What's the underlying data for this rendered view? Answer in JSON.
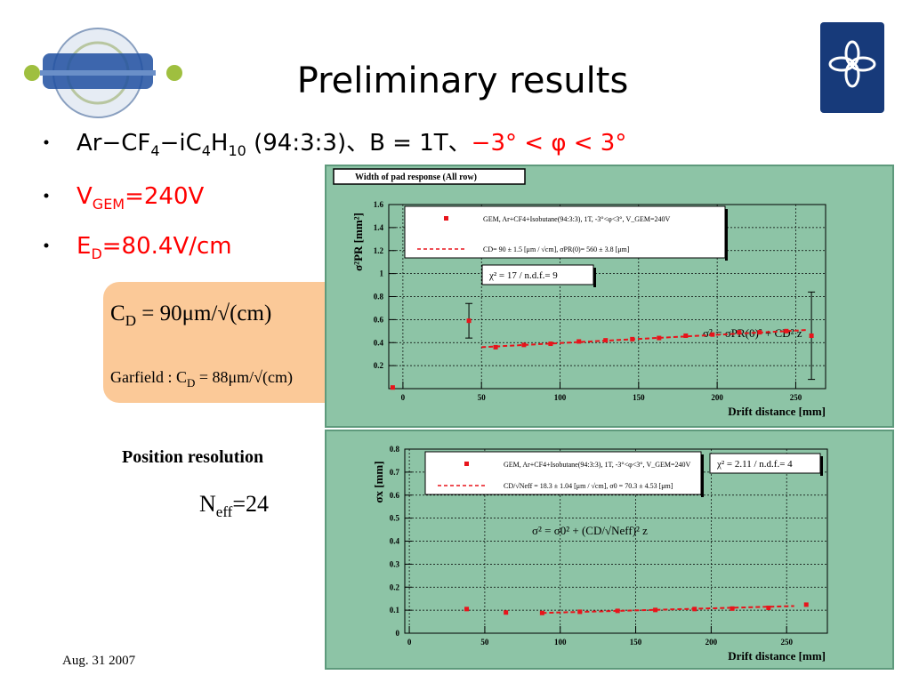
{
  "header": {
    "title": "Preliminary results"
  },
  "bullets": [
    [
      "Ar−CF",
      "4",
      "−iC",
      "4",
      "H",
      "10",
      " (94:3:3)、B = 1T、",
      "−3° < φ < 3°"
    ],
    [
      "V",
      "GEM",
      "=240V"
    ],
    [
      "E",
      "D",
      "=80.4V/cm"
    ]
  ],
  "box": {
    "line1": [
      "C",
      "D",
      " = 90μm/√(cm)"
    ],
    "line2": [
      "Garfield : C",
      "D",
      " = 88μm/√(cm)"
    ]
  },
  "resolution": {
    "label": "Position resolution",
    "neff": [
      "N",
      "eff",
      "=24"
    ]
  },
  "footer": {
    "date": "Aug. 31 2007"
  },
  "chart_data": [
    {
      "type": "scatter",
      "title": "Width of pad response (All row)",
      "x_label": "Drift distance [mm]",
      "y_label": "σ²PR [mm²]",
      "xlim": [
        -9,
        269
      ],
      "ylim": [
        0,
        1.6
      ],
      "xticks": [
        0,
        50,
        100,
        150,
        200,
        250
      ],
      "yticks": [
        0.2,
        0.4,
        0.6,
        0.8,
        1,
        1.2,
        1.4,
        1.6
      ],
      "grid": true,
      "series": [
        {
          "name": "GEM, Ar+CF4+Isobutane(94:3:3), 1T, -3°<φ<3°, V_GEM=240V",
          "color": "#e8141b",
          "mode": "markers",
          "x": [
            -6.5,
            42,
            59,
            77,
            94,
            112,
            129,
            146,
            163,
            180,
            197,
            214,
            227,
            244,
            260
          ],
          "values": [
            0.01,
            0.59,
            0.36,
            0.38,
            0.39,
            0.41,
            0.42,
            0.43,
            0.44,
            0.46,
            0.47,
            0.49,
            0.49,
            0.5,
            0.46
          ],
          "errors": [
            null,
            0.15,
            null,
            null,
            null,
            null,
            null,
            null,
            null,
            null,
            null,
            null,
            null,
            null,
            0.38
          ]
        },
        {
          "name": "CD= 90 ± 1.5 [μm / √cm], σPR(0)= 560 ± 3.8 [μm]",
          "color": "#e8141b",
          "mode": "dashed-line",
          "x": [
            50,
            258
          ],
          "values": [
            0.36,
            0.51
          ]
        }
      ],
      "chi": "χ² = 17 / n.d.f.= 9",
      "formula": "σ² = σPR(0)² + CD² z"
    },
    {
      "type": "scatter",
      "x_label": "Drift distance [mm]",
      "y_label": "σx [mm]",
      "xlim": [
        -3,
        277
      ],
      "ylim": [
        0,
        0.8
      ],
      "xticks": [
        0,
        50,
        100,
        150,
        200,
        250
      ],
      "yticks": [
        0,
        0.1,
        0.2,
        0.3,
        0.4,
        0.5,
        0.6,
        0.7,
        0.8
      ],
      "grid": true,
      "series": [
        {
          "name": "GEM, Ar+CF4+Isobutane(94:3:3), 1T, -3°<φ<3°, V_GEM=240V",
          "color": "#e8141b",
          "mode": "markers",
          "x": [
            38,
            64,
            88,
            113,
            138,
            163,
            189,
            214,
            238,
            263
          ],
          "values": [
            0.105,
            0.09,
            0.088,
            0.093,
            0.097,
            0.101,
            0.105,
            0.107,
            0.11,
            0.124
          ]
        },
        {
          "name": "CD/√Neff = 18.3 ± 1.04 [μm / √cm], σ0 = 70.3 ± 4.53 [μm]",
          "color": "#e8141b",
          "mode": "dashed-line",
          "x": [
            88,
            255
          ],
          "values": [
            0.088,
            0.118
          ]
        }
      ],
      "chi": "χ² = 2.11 / n.d.f.= 4",
      "formula": "σ² = σ0² + (CD/√Neff)² z"
    }
  ]
}
